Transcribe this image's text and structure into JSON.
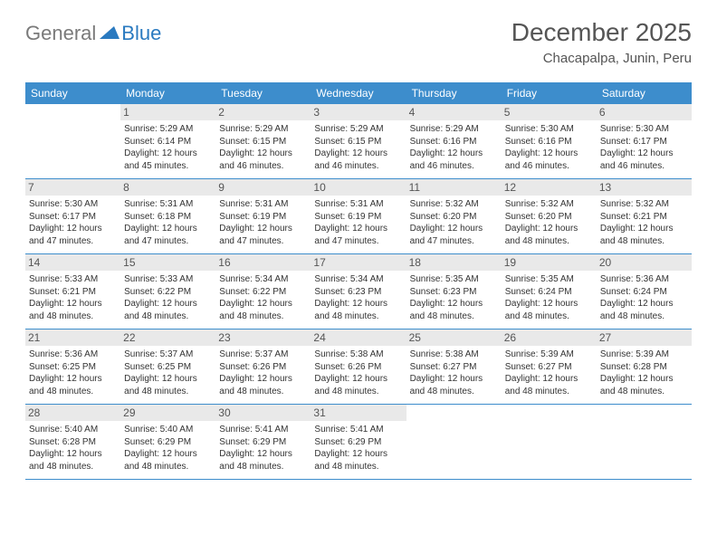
{
  "logo": {
    "text1": "General",
    "text2": "Blue"
  },
  "title": "December 2025",
  "location": "Chacapalpa, Junin, Peru",
  "colors": {
    "header_bg": "#3d8dcc",
    "header_text": "#ffffff",
    "daynum_bg": "#e9e9e9",
    "border": "#3d8dcc",
    "logo_gray": "#7a7a7a",
    "logo_blue": "#2a7ac0"
  },
  "weekdays": [
    "Sunday",
    "Monday",
    "Tuesday",
    "Wednesday",
    "Thursday",
    "Friday",
    "Saturday"
  ],
  "start_offset": 1,
  "days": [
    {
      "n": 1,
      "sunrise": "5:29 AM",
      "sunset": "6:14 PM",
      "daylight": "12 hours and 45 minutes."
    },
    {
      "n": 2,
      "sunrise": "5:29 AM",
      "sunset": "6:15 PM",
      "daylight": "12 hours and 46 minutes."
    },
    {
      "n": 3,
      "sunrise": "5:29 AM",
      "sunset": "6:15 PM",
      "daylight": "12 hours and 46 minutes."
    },
    {
      "n": 4,
      "sunrise": "5:29 AM",
      "sunset": "6:16 PM",
      "daylight": "12 hours and 46 minutes."
    },
    {
      "n": 5,
      "sunrise": "5:30 AM",
      "sunset": "6:16 PM",
      "daylight": "12 hours and 46 minutes."
    },
    {
      "n": 6,
      "sunrise": "5:30 AM",
      "sunset": "6:17 PM",
      "daylight": "12 hours and 46 minutes."
    },
    {
      "n": 7,
      "sunrise": "5:30 AM",
      "sunset": "6:17 PM",
      "daylight": "12 hours and 47 minutes."
    },
    {
      "n": 8,
      "sunrise": "5:31 AM",
      "sunset": "6:18 PM",
      "daylight": "12 hours and 47 minutes."
    },
    {
      "n": 9,
      "sunrise": "5:31 AM",
      "sunset": "6:19 PM",
      "daylight": "12 hours and 47 minutes."
    },
    {
      "n": 10,
      "sunrise": "5:31 AM",
      "sunset": "6:19 PM",
      "daylight": "12 hours and 47 minutes."
    },
    {
      "n": 11,
      "sunrise": "5:32 AM",
      "sunset": "6:20 PM",
      "daylight": "12 hours and 47 minutes."
    },
    {
      "n": 12,
      "sunrise": "5:32 AM",
      "sunset": "6:20 PM",
      "daylight": "12 hours and 48 minutes."
    },
    {
      "n": 13,
      "sunrise": "5:32 AM",
      "sunset": "6:21 PM",
      "daylight": "12 hours and 48 minutes."
    },
    {
      "n": 14,
      "sunrise": "5:33 AM",
      "sunset": "6:21 PM",
      "daylight": "12 hours and 48 minutes."
    },
    {
      "n": 15,
      "sunrise": "5:33 AM",
      "sunset": "6:22 PM",
      "daylight": "12 hours and 48 minutes."
    },
    {
      "n": 16,
      "sunrise": "5:34 AM",
      "sunset": "6:22 PM",
      "daylight": "12 hours and 48 minutes."
    },
    {
      "n": 17,
      "sunrise": "5:34 AM",
      "sunset": "6:23 PM",
      "daylight": "12 hours and 48 minutes."
    },
    {
      "n": 18,
      "sunrise": "5:35 AM",
      "sunset": "6:23 PM",
      "daylight": "12 hours and 48 minutes."
    },
    {
      "n": 19,
      "sunrise": "5:35 AM",
      "sunset": "6:24 PM",
      "daylight": "12 hours and 48 minutes."
    },
    {
      "n": 20,
      "sunrise": "5:36 AM",
      "sunset": "6:24 PM",
      "daylight": "12 hours and 48 minutes."
    },
    {
      "n": 21,
      "sunrise": "5:36 AM",
      "sunset": "6:25 PM",
      "daylight": "12 hours and 48 minutes."
    },
    {
      "n": 22,
      "sunrise": "5:37 AM",
      "sunset": "6:25 PM",
      "daylight": "12 hours and 48 minutes."
    },
    {
      "n": 23,
      "sunrise": "5:37 AM",
      "sunset": "6:26 PM",
      "daylight": "12 hours and 48 minutes."
    },
    {
      "n": 24,
      "sunrise": "5:38 AM",
      "sunset": "6:26 PM",
      "daylight": "12 hours and 48 minutes."
    },
    {
      "n": 25,
      "sunrise": "5:38 AM",
      "sunset": "6:27 PM",
      "daylight": "12 hours and 48 minutes."
    },
    {
      "n": 26,
      "sunrise": "5:39 AM",
      "sunset": "6:27 PM",
      "daylight": "12 hours and 48 minutes."
    },
    {
      "n": 27,
      "sunrise": "5:39 AM",
      "sunset": "6:28 PM",
      "daylight": "12 hours and 48 minutes."
    },
    {
      "n": 28,
      "sunrise": "5:40 AM",
      "sunset": "6:28 PM",
      "daylight": "12 hours and 48 minutes."
    },
    {
      "n": 29,
      "sunrise": "5:40 AM",
      "sunset": "6:29 PM",
      "daylight": "12 hours and 48 minutes."
    },
    {
      "n": 30,
      "sunrise": "5:41 AM",
      "sunset": "6:29 PM",
      "daylight": "12 hours and 48 minutes."
    },
    {
      "n": 31,
      "sunrise": "5:41 AM",
      "sunset": "6:29 PM",
      "daylight": "12 hours and 48 minutes."
    }
  ],
  "labels": {
    "sunrise": "Sunrise:",
    "sunset": "Sunset:",
    "daylight": "Daylight:"
  }
}
